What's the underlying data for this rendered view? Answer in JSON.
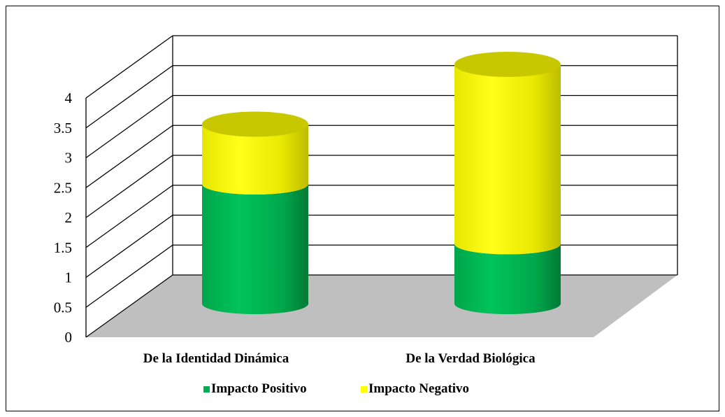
{
  "chart_data": {
    "type": "bar",
    "subtype": "stacked-3d-cylinder",
    "title": "",
    "xlabel": "",
    "ylabel": "",
    "ylim": [
      0,
      4
    ],
    "yticks": [
      0,
      0.5,
      1,
      1.5,
      2,
      2.5,
      3,
      3.5,
      4
    ],
    "ytick_labels": [
      "0",
      "0.5",
      "1",
      "1.5",
      "2",
      "2.5",
      "3",
      "3.5",
      "4"
    ],
    "categories": [
      "De la Identidad Dinámica",
      "De la Verdad Biológica"
    ],
    "series": [
      {
        "name": "Impacto Positivo",
        "values": [
          2,
          1
        ],
        "color": "#00b050"
      },
      {
        "name": "Impacto Negativo",
        "values": [
          1,
          3
        ],
        "color": "#ffff00"
      }
    ],
    "grid": true,
    "legend_position": "bottom",
    "floor_color": "#bfbfbf"
  }
}
